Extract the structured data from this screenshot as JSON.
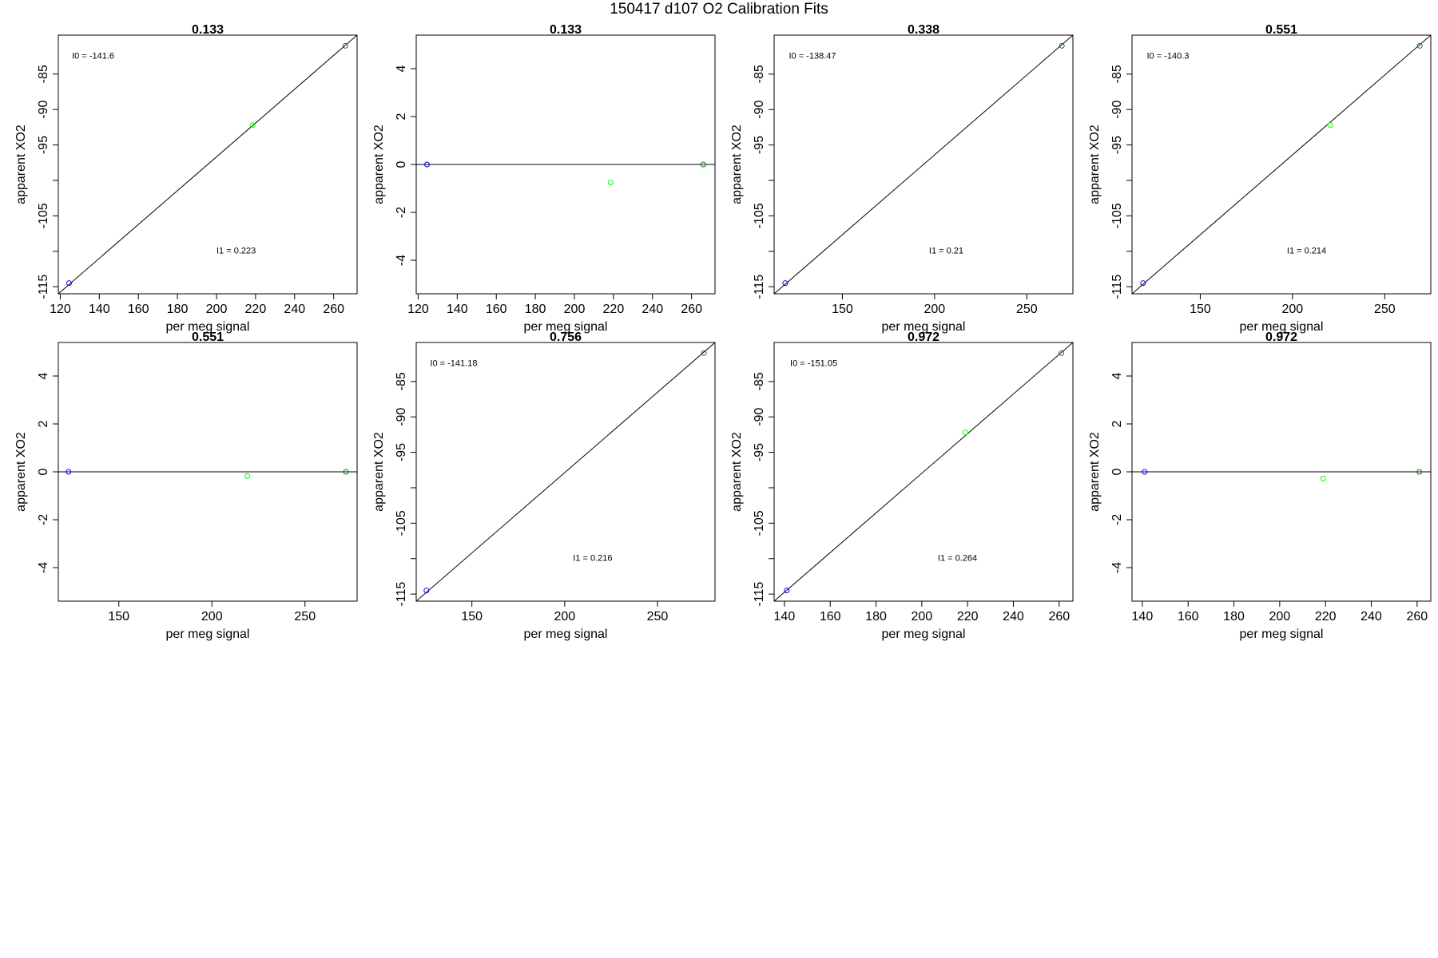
{
  "page_title": "150417   d107   O2 Calibration Fits",
  "colors": {
    "axis": "#000000",
    "fit_line": "#000000",
    "point_low": "#0000ff",
    "point_mid": "#00ff00",
    "point_high": "#008000"
  },
  "chart_data": [
    {
      "type": "scatter",
      "title": "0.133",
      "xlabel": "per meg signal",
      "ylabel": "apparent XO2",
      "xlim": [
        119,
        272
      ],
      "ylim": [
        -116,
        -79.5
      ],
      "xticks": [
        120,
        140,
        160,
        180,
        200,
        220,
        240,
        260
      ],
      "yticks": [
        -115,
        -110,
        -105,
        -100,
        -95,
        -90,
        -85
      ],
      "ytick_labels": [
        "-115",
        "",
        "-105",
        "",
        "-95",
        "-90",
        "-85"
      ],
      "points": [
        {
          "x": 124.5,
          "y": -114.5,
          "color": "#0000ff"
        },
        {
          "x": 218.5,
          "y": -92.2,
          "color": "#00ff00"
        },
        {
          "x": 266,
          "y": -81,
          "color": "#008000"
        }
      ],
      "fit_line": {
        "x": [
          119,
          272
        ],
        "y": [
          -116,
          -79.5
        ]
      },
      "annotations": [
        {
          "text": "I0 =  -141.6",
          "x": 126,
          "y": -82.8
        },
        {
          "text": "I1 =  0.223",
          "x": 200,
          "y": -110.3
        }
      ]
    },
    {
      "type": "scatter",
      "title": "0.133",
      "xlabel": "per meg signal",
      "ylabel": "apparent XO2",
      "xlim": [
        119,
        272
      ],
      "ylim": [
        -5.4,
        5.4
      ],
      "xticks": [
        120,
        140,
        160,
        180,
        200,
        220,
        240,
        260
      ],
      "yticks": [
        -4,
        -2,
        0,
        2,
        4
      ],
      "points": [
        {
          "x": 124.5,
          "y": 0,
          "color": "#0000ff"
        },
        {
          "x": 218.5,
          "y": -0.75,
          "color": "#00ff00"
        },
        {
          "x": 266,
          "y": 0,
          "color": "#008000"
        }
      ],
      "fit_line": {
        "x": [
          119,
          272
        ],
        "y": [
          0,
          0
        ]
      },
      "annotations": []
    },
    {
      "type": "scatter",
      "title": "0.338",
      "xlabel": "per meg signal",
      "ylabel": "apparent XO2",
      "xlim": [
        113,
        275
      ],
      "ylim": [
        -116,
        -79.5
      ],
      "xticks": [
        150,
        200,
        250
      ],
      "yticks": [
        -115,
        -110,
        -105,
        -100,
        -95,
        -90,
        -85
      ],
      "ytick_labels": [
        "-115",
        "",
        "-105",
        "",
        "-95",
        "-90",
        "-85"
      ],
      "points": [
        {
          "x": 119,
          "y": -114.5,
          "color": "#0000ff"
        },
        {
          "x": 269,
          "y": -81,
          "color": "#008000"
        }
      ],
      "fit_line": {
        "x": [
          113,
          275
        ],
        "y": [
          -116,
          -79.5
        ]
      },
      "annotations": [
        {
          "text": "I0 =  -138.47",
          "x": 121,
          "y": -82.8
        },
        {
          "text": "I1 =  0.21",
          "x": 197,
          "y": -110.3
        }
      ]
    },
    {
      "type": "scatter",
      "title": "0.551",
      "xlabel": "per meg signal",
      "ylabel": "apparent XO2",
      "xlim": [
        113,
        275
      ],
      "ylim": [
        -116,
        -79.5
      ],
      "xticks": [
        150,
        200,
        250
      ],
      "yticks": [
        -115,
        -110,
        -105,
        -100,
        -95,
        -90,
        -85
      ],
      "ytick_labels": [
        "-115",
        "",
        "-105",
        "",
        "-95",
        "-90",
        "-85"
      ],
      "points": [
        {
          "x": 119,
          "y": -114.5,
          "color": "#0000ff"
        },
        {
          "x": 220.5,
          "y": -92.2,
          "color": "#00ff00"
        },
        {
          "x": 269,
          "y": -81,
          "color": "#008000"
        }
      ],
      "fit_line": {
        "x": [
          113,
          275
        ],
        "y": [
          -116,
          -79.5
        ]
      },
      "annotations": [
        {
          "text": "I0 =  -140.3",
          "x": 121,
          "y": -82.8
        },
        {
          "text": "I1 =  0.214",
          "x": 197,
          "y": -110.3
        }
      ]
    },
    {
      "type": "scatter",
      "title": "0.551",
      "xlabel": "per meg signal",
      "ylabel": "apparent XO2",
      "xlim": [
        117.5,
        278
      ],
      "ylim": [
        -5.4,
        5.4
      ],
      "xticks": [
        150,
        200,
        250
      ],
      "yticks": [
        -4,
        -2,
        0,
        2,
        4
      ],
      "points": [
        {
          "x": 123,
          "y": 0,
          "color": "#0000ff"
        },
        {
          "x": 219,
          "y": -0.18,
          "color": "#00ff00"
        },
        {
          "x": 272,
          "y": 0,
          "color": "#008000"
        }
      ],
      "fit_line": {
        "x": [
          117.5,
          278
        ],
        "y": [
          0,
          0
        ]
      },
      "annotations": []
    },
    {
      "type": "scatter",
      "title": "0.756",
      "xlabel": "per meg signal",
      "ylabel": "apparent XO2",
      "xlim": [
        120,
        281
      ],
      "ylim": [
        -116,
        -79.5
      ],
      "xticks": [
        150,
        200,
        250
      ],
      "yticks": [
        -115,
        -110,
        -105,
        -100,
        -95,
        -90,
        -85
      ],
      "ytick_labels": [
        "-115",
        "",
        "-105",
        "",
        "-95",
        "-90",
        "-85"
      ],
      "points": [
        {
          "x": 125.5,
          "y": -114.5,
          "color": "#0000ff"
        },
        {
          "x": 275,
          "y": -81,
          "color": "#008000"
        }
      ],
      "fit_line": {
        "x": [
          120,
          281
        ],
        "y": [
          -116,
          -79.5
        ]
      },
      "annotations": [
        {
          "text": "I0 =  -141.18",
          "x": 127.5,
          "y": -82.8
        },
        {
          "text": "I1 =  0.216",
          "x": 204.5,
          "y": -110.3
        }
      ]
    },
    {
      "type": "scatter",
      "title": "0.972",
      "xlabel": "per meg signal",
      "ylabel": "apparent XO2",
      "xlim": [
        135.5,
        266
      ],
      "ylim": [
        -116,
        -79.5
      ],
      "xticks": [
        140,
        160,
        180,
        200,
        220,
        240,
        260
      ],
      "yticks": [
        -115,
        -110,
        -105,
        -100,
        -95,
        -90,
        -85
      ],
      "ytick_labels": [
        "-115",
        "",
        "-105",
        "",
        "-95",
        "-90",
        "-85"
      ],
      "points": [
        {
          "x": 141,
          "y": -114.5,
          "color": "#0000ff"
        },
        {
          "x": 219,
          "y": -92.2,
          "color": "#00ff00"
        },
        {
          "x": 261,
          "y": -81,
          "color": "#008000"
        }
      ],
      "fit_line": {
        "x": [
          135.5,
          266
        ],
        "y": [
          -116,
          -79.5
        ]
      },
      "annotations": [
        {
          "text": "I0 =  -151.05",
          "x": 142.5,
          "y": -82.8
        },
        {
          "text": "I1 =  0.264",
          "x": 207,
          "y": -110.3
        }
      ]
    },
    {
      "type": "scatter",
      "title": "0.972",
      "xlabel": "per meg signal",
      "ylabel": "apparent XO2",
      "xlim": [
        135.5,
        266
      ],
      "ylim": [
        -5.4,
        5.4
      ],
      "xticks": [
        140,
        160,
        180,
        200,
        220,
        240,
        260
      ],
      "yticks": [
        -4,
        -2,
        0,
        2,
        4
      ],
      "points": [
        {
          "x": 141,
          "y": 0,
          "color": "#0000ff"
        },
        {
          "x": 219,
          "y": -0.28,
          "color": "#00ff00"
        },
        {
          "x": 261,
          "y": 0,
          "color": "#008000"
        }
      ],
      "fit_line": {
        "x": [
          135.5,
          266
        ],
        "y": [
          0,
          0
        ]
      },
      "annotations": []
    }
  ]
}
